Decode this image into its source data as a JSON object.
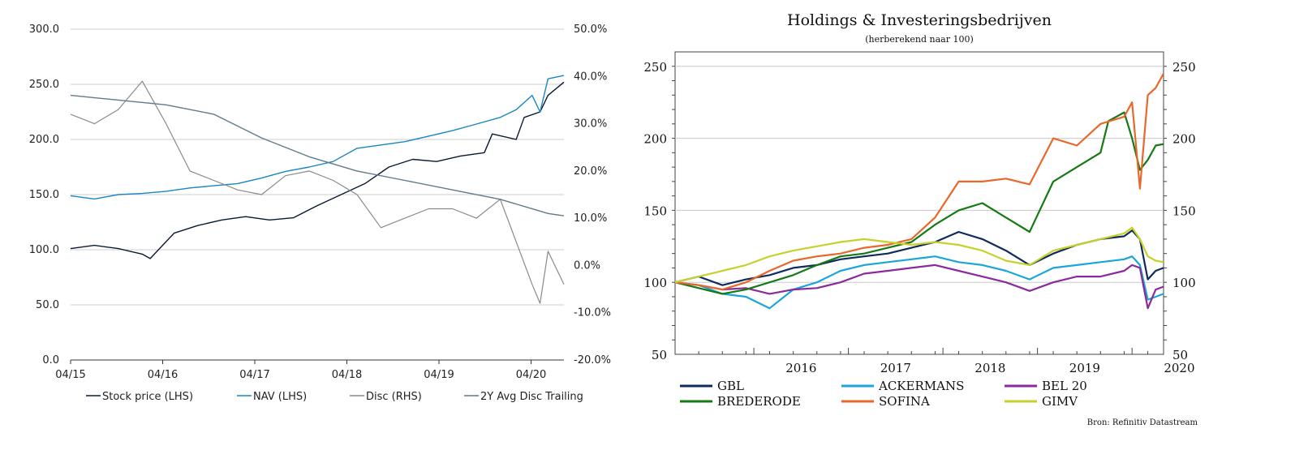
{
  "chart_data": [
    {
      "type": "line",
      "title": "",
      "xlabel": "",
      "ylabel": "",
      "x_ticks": [
        "04/15",
        "04/16",
        "04/17",
        "04/18",
        "04/19",
        "04/20"
      ],
      "y_left_ticks": [
        "0.0",
        "50.0",
        "100.0",
        "150.0",
        "200.0",
        "250.0",
        "300.0"
      ],
      "y_right_ticks": [
        "-20.0%",
        "-10.0%",
        "0.0%",
        "10.0%",
        "20.0%",
        "30.0%",
        "40.0%",
        "50.0%"
      ],
      "ylim_left": [
        0,
        300
      ],
      "ylim_right": [
        -20,
        50
      ],
      "x_range": [
        "2015-04",
        "2020-06"
      ],
      "grid": true,
      "legend_position": "bottom",
      "legend": [
        "Stock price (LHS)",
        "NAV (LHS)",
        "Disc (RHS)",
        "2Y Avg Disc Trailing"
      ],
      "series": [
        {
          "name": "Stock price (LHS)",
          "axis": "left",
          "color": "#0b1a33",
          "x": [
            "2015-04",
            "2015-07",
            "2015-10",
            "2016-01",
            "2016-02",
            "2016-05",
            "2016-08",
            "2016-11",
            "2017-02",
            "2017-05",
            "2017-08",
            "2017-11",
            "2018-02",
            "2018-05",
            "2018-08",
            "2018-11",
            "2019-02",
            "2019-05",
            "2019-08",
            "2019-09",
            "2019-12",
            "2020-01",
            "2020-03",
            "2020-04",
            "2020-06"
          ],
          "values": [
            101,
            104,
            101,
            96,
            92,
            115,
            122,
            127,
            130,
            127,
            129,
            140,
            150,
            160,
            175,
            182,
            180,
            185,
            188,
            205,
            200,
            220,
            225,
            240,
            252
          ]
        },
        {
          "name": "NAV (LHS)",
          "axis": "left",
          "color": "#1a86c0",
          "x": [
            "2015-04",
            "2015-07",
            "2015-10",
            "2016-01",
            "2016-04",
            "2016-07",
            "2016-10",
            "2017-01",
            "2017-04",
            "2017-07",
            "2017-10",
            "2018-01",
            "2018-04",
            "2018-07",
            "2018-10",
            "2019-01",
            "2019-04",
            "2019-07",
            "2019-10",
            "2019-12",
            "2020-02",
            "2020-03",
            "2020-04",
            "2020-06"
          ],
          "values": [
            149,
            146,
            150,
            151,
            153,
            156,
            158,
            160,
            165,
            171,
            175,
            180,
            192,
            195,
            198,
            203,
            208,
            214,
            220,
            227,
            240,
            225,
            255,
            258
          ]
        },
        {
          "name": "Disc (RHS)",
          "axis": "right",
          "color": "#8a8a8a",
          "x": [
            "2015-04",
            "2015-07",
            "2015-10",
            "2016-01",
            "2016-04",
            "2016-07",
            "2016-10",
            "2017-01",
            "2017-04",
            "2017-07",
            "2017-10",
            "2018-01",
            "2018-04",
            "2018-07",
            "2018-10",
            "2019-01",
            "2019-04",
            "2019-07",
            "2019-10",
            "2019-12",
            "2020-02",
            "2020-03",
            "2020-04",
            "2020-06"
          ],
          "values": [
            32,
            30,
            33,
            39,
            30,
            20,
            18,
            16,
            15,
            19,
            20,
            18,
            15,
            8,
            10,
            12,
            12,
            10,
            14,
            5,
            -4,
            -8,
            3,
            -4
          ]
        },
        {
          "name": "2Y Avg Disc Trailing",
          "axis": "right",
          "color": "#5f7b8a",
          "x": [
            "2015-04",
            "2015-10",
            "2016-04",
            "2016-10",
            "2017-04",
            "2017-10",
            "2018-04",
            "2018-10",
            "2019-04",
            "2019-10",
            "2020-04",
            "2020-06"
          ],
          "values": [
            36,
            35,
            34,
            32,
            27,
            23,
            20,
            18,
            16,
            14,
            11,
            10.5
          ]
        }
      ]
    },
    {
      "type": "line",
      "title": "Holdings & Investeringsbedrijven",
      "subtitle": "(herberekend naar 100)",
      "xlabel": "",
      "ylabel": "",
      "x_ticks": [
        "2016",
        "2017",
        "2018",
        "2019",
        "2020"
      ],
      "y_ticks": [
        "50",
        "100",
        "150",
        "200",
        "250"
      ],
      "ylim": [
        50,
        260
      ],
      "x_range": [
        "2015-03",
        "2020-05"
      ],
      "grid": true,
      "legend_position": "bottom",
      "source": "Bron: Refinitiv Datastream",
      "series": [
        {
          "name": "GBL",
          "color": "#0f2b5c",
          "x": [
            "2015-03",
            "2015-06",
            "2015-09",
            "2015-12",
            "2016-03",
            "2016-06",
            "2016-09",
            "2016-12",
            "2017-03",
            "2017-06",
            "2017-09",
            "2017-12",
            "2018-03",
            "2018-06",
            "2018-09",
            "2018-12",
            "2019-03",
            "2019-06",
            "2019-09",
            "2019-12",
            "2020-01",
            "2020-02",
            "2020-03",
            "2020-04",
            "2020-05"
          ],
          "values": [
            100,
            104,
            98,
            102,
            105,
            110,
            112,
            116,
            118,
            120,
            124,
            128,
            135,
            130,
            122,
            112,
            120,
            126,
            130,
            132,
            136,
            130,
            102,
            108,
            110
          ]
        },
        {
          "name": "ACKERMANS",
          "color": "#1aa6d9",
          "x": [
            "2015-03",
            "2015-06",
            "2015-09",
            "2015-12",
            "2016-03",
            "2016-06",
            "2016-09",
            "2016-12",
            "2017-03",
            "2017-06",
            "2017-09",
            "2017-12",
            "2018-03",
            "2018-06",
            "2018-09",
            "2018-12",
            "2019-03",
            "2019-06",
            "2019-09",
            "2019-12",
            "2020-01",
            "2020-02",
            "2020-03",
            "2020-04",
            "2020-05"
          ],
          "values": [
            100,
            98,
            92,
            90,
            82,
            95,
            100,
            108,
            112,
            114,
            116,
            118,
            114,
            112,
            108,
            102,
            110,
            112,
            114,
            116,
            118,
            112,
            88,
            90,
            92
          ]
        },
        {
          "name": "BEL 20",
          "color": "#8a2a9e",
          "x": [
            "2015-03",
            "2015-06",
            "2015-09",
            "2015-12",
            "2016-03",
            "2016-06",
            "2016-09",
            "2016-12",
            "2017-03",
            "2017-06",
            "2017-09",
            "2017-12",
            "2018-03",
            "2018-06",
            "2018-09",
            "2018-12",
            "2019-03",
            "2019-06",
            "2019-09",
            "2019-12",
            "2020-01",
            "2020-02",
            "2020-03",
            "2020-04",
            "2020-05"
          ],
          "values": [
            100,
            98,
            95,
            96,
            92,
            95,
            96,
            100,
            106,
            108,
            110,
            112,
            108,
            104,
            100,
            94,
            100,
            104,
            104,
            108,
            112,
            110,
            82,
            95,
            97
          ]
        },
        {
          "name": "BREDERODE",
          "color": "#147a14",
          "x": [
            "2015-03",
            "2015-06",
            "2015-09",
            "2015-12",
            "2016-03",
            "2016-06",
            "2016-09",
            "2016-12",
            "2017-03",
            "2017-06",
            "2017-09",
            "2017-12",
            "2018-03",
            "2018-06",
            "2018-09",
            "2018-12",
            "2019-03",
            "2019-06",
            "2019-09",
            "2019-10",
            "2019-12",
            "2020-01",
            "2020-02",
            "2020-03",
            "2020-04",
            "2020-05"
          ],
          "values": [
            100,
            96,
            92,
            95,
            100,
            105,
            112,
            118,
            120,
            124,
            128,
            140,
            150,
            155,
            145,
            135,
            170,
            180,
            190,
            212,
            218,
            200,
            178,
            185,
            195,
            196
          ]
        },
        {
          "name": "SOFINA",
          "color": "#e8672a",
          "x": [
            "2015-03",
            "2015-06",
            "2015-09",
            "2015-12",
            "2016-03",
            "2016-06",
            "2016-09",
            "2016-12",
            "2017-03",
            "2017-06",
            "2017-09",
            "2017-12",
            "2018-03",
            "2018-06",
            "2018-09",
            "2018-12",
            "2019-03",
            "2019-06",
            "2019-09",
            "2019-12",
            "2020-01",
            "2020-02",
            "2020-03",
            "2020-04",
            "2020-05"
          ],
          "values": [
            100,
            98,
            95,
            100,
            108,
            115,
            118,
            120,
            124,
            126,
            130,
            145,
            170,
            170,
            172,
            168,
            200,
            195,
            210,
            215,
            225,
            165,
            230,
            235,
            245
          ]
        },
        {
          "name": "GIMV",
          "color": "#c6d22a",
          "x": [
            "2015-03",
            "2015-06",
            "2015-09",
            "2015-12",
            "2016-03",
            "2016-06",
            "2016-09",
            "2016-12",
            "2017-03",
            "2017-06",
            "2017-09",
            "2017-12",
            "2018-03",
            "2018-06",
            "2018-09",
            "2018-12",
            "2019-03",
            "2019-06",
            "2019-09",
            "2019-12",
            "2020-01",
            "2020-02",
            "2020-03",
            "2020-04",
            "2020-05"
          ],
          "values": [
            100,
            104,
            108,
            112,
            118,
            122,
            125,
            128,
            130,
            128,
            126,
            128,
            126,
            122,
            115,
            112,
            122,
            126,
            130,
            134,
            138,
            130,
            118,
            115,
            114
          ]
        }
      ]
    }
  ]
}
